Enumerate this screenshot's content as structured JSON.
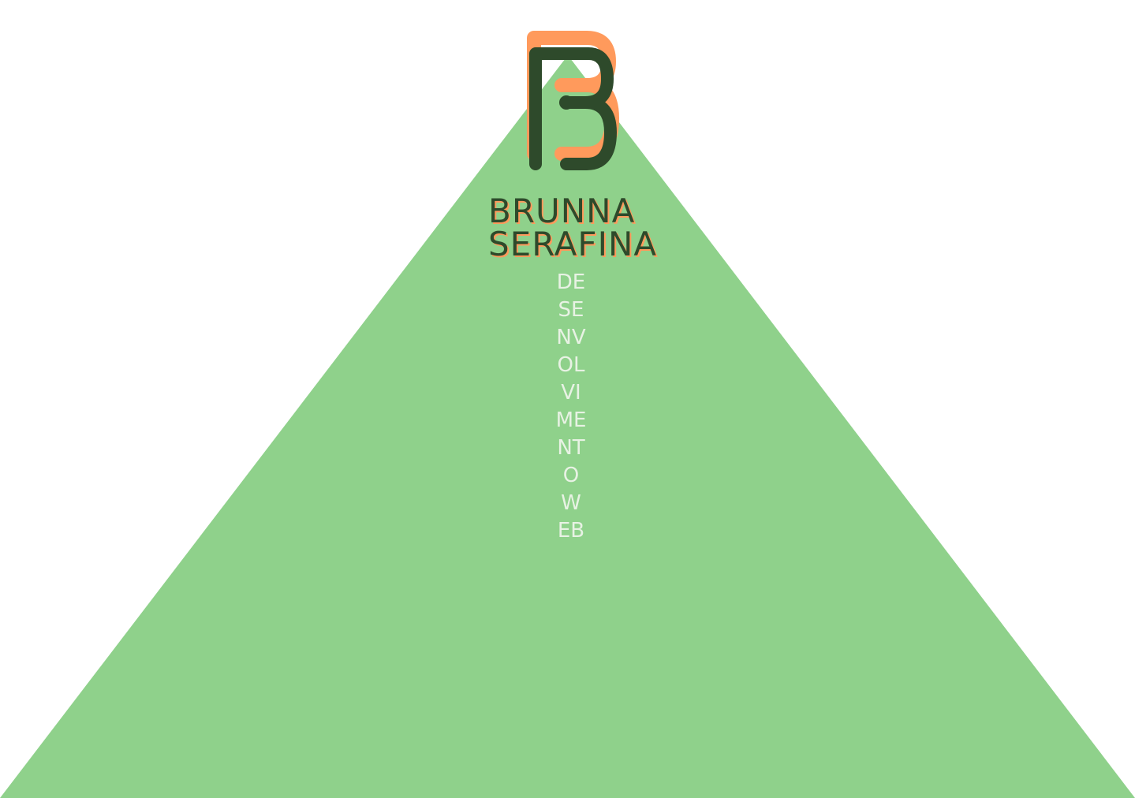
{
  "brand": {
    "monogram": "B",
    "name_first": "BRUNNA",
    "name_last": "SERAFINA",
    "tagline": "DESENVOLVIMENTO WEB"
  },
  "colors": {
    "triangle": "#8fd18b",
    "dark_green": "#2e4a2b",
    "accent_orange": "#ff9a5c",
    "tagline_text": "#e8f2e4",
    "background": "#ffffff"
  }
}
